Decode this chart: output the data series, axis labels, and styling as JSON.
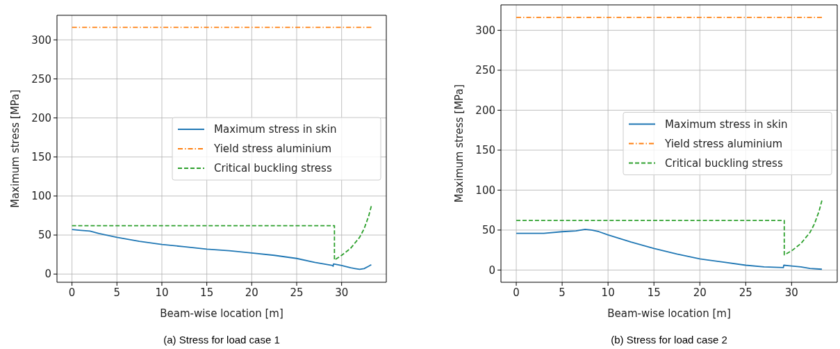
{
  "chart_data": [
    {
      "type": "line",
      "title": "(a) Stress for load case 1",
      "xlabel": "Beam-wise location [m]",
      "ylabel": "Maximum stress [MPa]",
      "xlim": [
        -1.67,
        34.97
      ],
      "ylim": [
        -10.5,
        331.5
      ],
      "xticks": [
        0,
        5,
        10,
        15,
        20,
        25,
        30
      ],
      "yticks": [
        0,
        50,
        100,
        150,
        200,
        250,
        300
      ],
      "grid": true,
      "legend": "center right",
      "series": [
        {
          "name": "Maximum stress in skin",
          "color": "#1f77b4",
          "line_style": "solid",
          "x": [
            0,
            1,
            2,
            3,
            5,
            7.5,
            10,
            12.5,
            15,
            17.5,
            20,
            22.5,
            25,
            27,
            29,
            29.05,
            29.1,
            30,
            31,
            31.5,
            32,
            32.5,
            33,
            33.3
          ],
          "values": [
            57,
            56,
            55,
            52,
            47,
            42,
            38,
            35,
            32,
            30,
            27,
            24,
            20,
            15,
            11,
            10,
            13,
            11,
            8,
            7,
            6,
            7,
            10,
            12
          ]
        },
        {
          "name": "Yield stress aluminium",
          "color": "#ff7f0e",
          "line_style": "dashdot",
          "x": [
            0,
            33.3
          ],
          "values": [
            316,
            316
          ]
        },
        {
          "name": "Critical buckling stress",
          "color": "#2ca02c",
          "line_style": "dashed",
          "x": [
            0,
            29.2,
            29.2,
            30,
            31,
            32,
            32.5,
            33,
            33.3
          ],
          "values": [
            62,
            62,
            18,
            24,
            33,
            47,
            58,
            74,
            87
          ]
        }
      ]
    },
    {
      "type": "line",
      "title": "(b) Stress for load case 2",
      "xlabel": "Beam-wise location [m]",
      "ylabel": "Maximum stress [MPa]",
      "xlim": [
        -1.67,
        34.97
      ],
      "ylim": [
        -15.3,
        331.8
      ],
      "xticks": [
        0,
        5,
        10,
        15,
        20,
        25,
        30
      ],
      "yticks": [
        0,
        50,
        100,
        150,
        200,
        250,
        300
      ],
      "grid": true,
      "legend": "center right",
      "series": [
        {
          "name": "Maximum stress in skin",
          "color": "#1f77b4",
          "line_style": "solid",
          "x": [
            0,
            1.5,
            3,
            5,
            6.5,
            7.5,
            8.2,
            9,
            10,
            12.5,
            15,
            17.5,
            20,
            22.5,
            25,
            27,
            29.1,
            29.15,
            30,
            31,
            32,
            33.3
          ],
          "values": [
            46,
            46,
            46,
            48,
            49,
            51,
            50,
            48,
            44,
            35,
            27,
            20,
            14,
            10,
            6,
            4,
            3,
            6,
            5,
            4,
            2,
            1
          ]
        },
        {
          "name": "Yield stress aluminium",
          "color": "#ff7f0e",
          "line_style": "dashdot",
          "x": [
            0,
            33.3
          ],
          "values": [
            316,
            316
          ]
        },
        {
          "name": "Critical buckling stress",
          "color": "#2ca02c",
          "line_style": "dashed",
          "x": [
            0,
            29.2,
            29.2,
            30,
            31,
            32,
            32.5,
            33,
            33.3
          ],
          "values": [
            62,
            62,
            19,
            24,
            33,
            47,
            58,
            74,
            87
          ]
        }
      ]
    }
  ]
}
